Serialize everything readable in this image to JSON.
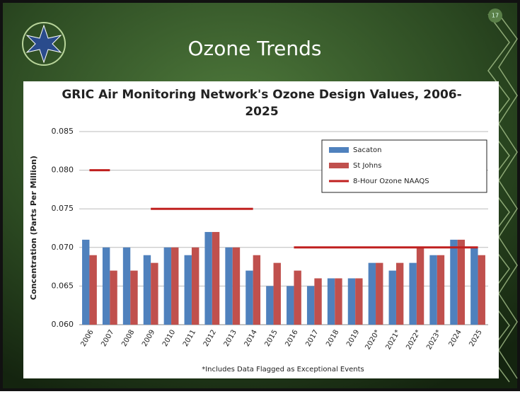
{
  "slide": {
    "title": "Ozone Trends",
    "page_number": "17"
  },
  "chart_data": {
    "type": "bar",
    "title": "GRIC Air Monitoring Network's Ozone Design Values, 2006-2025",
    "y_label": "Concentration (Parts Per Million)",
    "footnote": "*Includes Data Flagged as Exceptional Events",
    "categories": [
      "2006",
      "2007",
      "2008",
      "2009",
      "2010",
      "2011",
      "2012",
      "2013",
      "2014",
      "2015",
      "2016",
      "2017",
      "2018",
      "2019",
      "2020*",
      "2021*",
      "2022*",
      "2023*",
      "2024",
      "2025"
    ],
    "series": [
      {
        "name": "Sacaton",
        "color": "#4f81bd",
        "values": [
          0.071,
          0.07,
          0.07,
          0.069,
          0.07,
          0.069,
          0.072,
          0.07,
          0.067,
          0.065,
          0.065,
          0.065,
          0.066,
          0.066,
          0.068,
          0.067,
          0.068,
          0.069,
          0.071,
          0.07
        ]
      },
      {
        "name": "St Johns",
        "color": "#c0504d",
        "values": [
          0.069,
          0.067,
          0.067,
          0.068,
          0.07,
          0.07,
          0.072,
          0.07,
          0.069,
          0.068,
          0.067,
          0.066,
          0.066,
          0.066,
          0.068,
          0.068,
          0.07,
          0.069,
          0.071,
          0.069
        ]
      },
      {
        "name": "8-Hour Ozone NAAQS",
        "type": "line",
        "color": "#c0201f",
        "values": [
          0.08,
          0.08,
          null,
          0.075,
          0.075,
          0.075,
          0.075,
          0.075,
          0.075,
          null,
          0.07,
          0.07,
          0.07,
          0.07,
          0.07,
          0.07,
          0.07,
          0.07,
          0.07,
          0.07
        ]
      }
    ],
    "ylim": [
      0.06,
      0.085
    ],
    "yticks": [
      {
        "value": 0.06,
        "label": "0.060"
      },
      0.065,
      {
        "value": 0.07,
        "label": "0.070"
      },
      0.075,
      {
        "value": 0.08,
        "label": "0.080"
      },
      0.085
    ],
    "grid": true,
    "legend": "top-right"
  }
}
